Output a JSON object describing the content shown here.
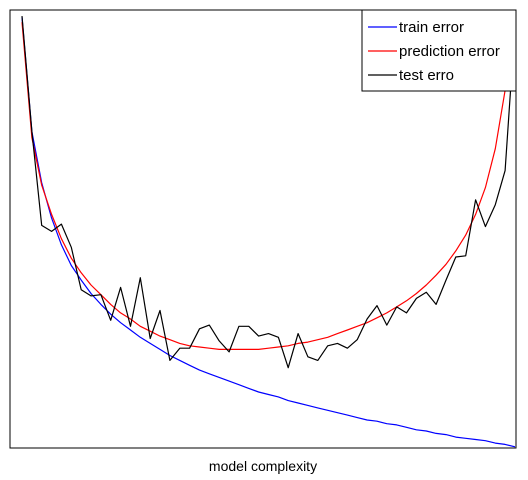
{
  "chart_data": {
    "type": "line",
    "title": "",
    "xlabel": "model complexity",
    "ylabel": "",
    "xlim": [
      0,
      50
    ],
    "ylim": [
      0,
      36
    ],
    "grid": false,
    "axes_ticks": false,
    "legend_position": "top-right",
    "x": [
      0,
      1,
      2,
      3,
      4,
      5,
      6,
      7,
      8,
      9,
      10,
      11,
      12,
      13,
      14,
      15,
      16,
      17,
      18,
      19,
      20,
      21,
      22,
      23,
      24,
      25,
      26,
      27,
      28,
      29,
      30,
      31,
      32,
      33,
      34,
      35,
      36,
      37,
      38,
      39,
      40,
      41,
      42,
      43,
      44,
      45,
      46,
      47,
      48,
      49,
      50
    ],
    "series": [
      {
        "name": "train error",
        "color": "#0000ff",
        "values": [
          35.4,
          26.0,
          21.8,
          18.9,
          16.7,
          15.0,
          13.8,
          12.7,
          11.8,
          11.0,
          10.3,
          9.7,
          9.1,
          8.6,
          8.1,
          7.6,
          7.2,
          6.8,
          6.4,
          6.1,
          5.8,
          5.5,
          5.2,
          4.9,
          4.6,
          4.4,
          4.2,
          3.9,
          3.7,
          3.5,
          3.3,
          3.1,
          2.9,
          2.7,
          2.5,
          2.3,
          2.2,
          2.0,
          1.9,
          1.7,
          1.5,
          1.4,
          1.2,
          1.1,
          0.9,
          0.8,
          0.7,
          0.6,
          0.4,
          0.3,
          0.1
        ]
      },
      {
        "name": "prediction error",
        "color": "#ff0000",
        "values": [
          35.0,
          25.5,
          21.6,
          19.2,
          17.2,
          15.6,
          14.4,
          13.4,
          12.6,
          11.8,
          11.1,
          10.6,
          10.0,
          9.6,
          9.2,
          8.9,
          8.6,
          8.4,
          8.3,
          8.2,
          8.1,
          8.1,
          8.1,
          8.1,
          8.1,
          8.2,
          8.3,
          8.4,
          8.6,
          8.7,
          8.9,
          9.1,
          9.4,
          9.7,
          10.0,
          10.3,
          10.7,
          11.1,
          11.6,
          12.1,
          12.7,
          13.4,
          14.2,
          15.1,
          16.2,
          17.5,
          19.2,
          21.4,
          24.6,
          29.4,
          35.6
        ]
      },
      {
        "name": "test erro",
        "color": "#000000",
        "values": [
          35.5,
          26.0,
          18.3,
          17.8,
          18.4,
          16.5,
          13.0,
          12.5,
          12.6,
          10.5,
          13.2,
          10.0,
          14.0,
          9.0,
          11.3,
          7.2,
          8.2,
          8.2,
          9.8,
          10.1,
          8.8,
          7.9,
          10.0,
          10.0,
          9.2,
          9.4,
          9.1,
          6.6,
          9.4,
          7.5,
          7.2,
          8.4,
          8.6,
          8.2,
          8.9,
          10.6,
          11.7,
          10.1,
          11.6,
          11.1,
          12.3,
          12.8,
          11.8,
          13.8,
          15.7,
          15.8,
          20.4,
          18.2,
          20.0,
          22.8,
          34.8
        ]
      }
    ]
  }
}
